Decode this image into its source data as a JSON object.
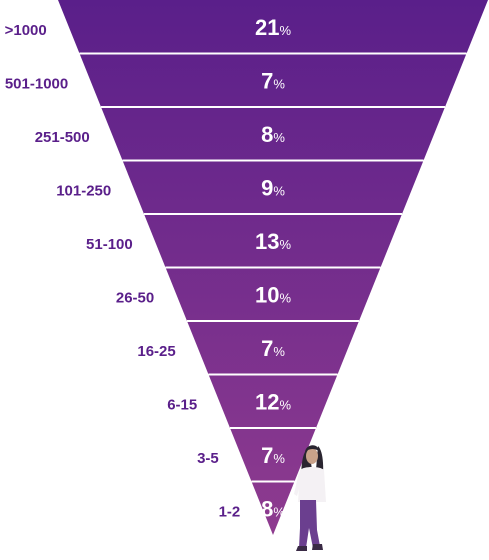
{
  "chart_data": {
    "type": "funnel",
    "title": "",
    "categories": [
      ">1000",
      "501-1000",
      "251-500",
      "101-250",
      "51-100",
      "26-50",
      "16-25",
      "6-15",
      "3-5",
      "1-2"
    ],
    "values": [
      21,
      7,
      8,
      9,
      13,
      10,
      7,
      12,
      7,
      8
    ],
    "value_suffix": "%",
    "colors": {
      "top": "#5a1f8a",
      "bottom": "#8e3b8f",
      "separator": "#ffffff",
      "category_label": "#5a1f8a",
      "value_label": "#ffffff"
    },
    "figure": "woman-standing"
  }
}
